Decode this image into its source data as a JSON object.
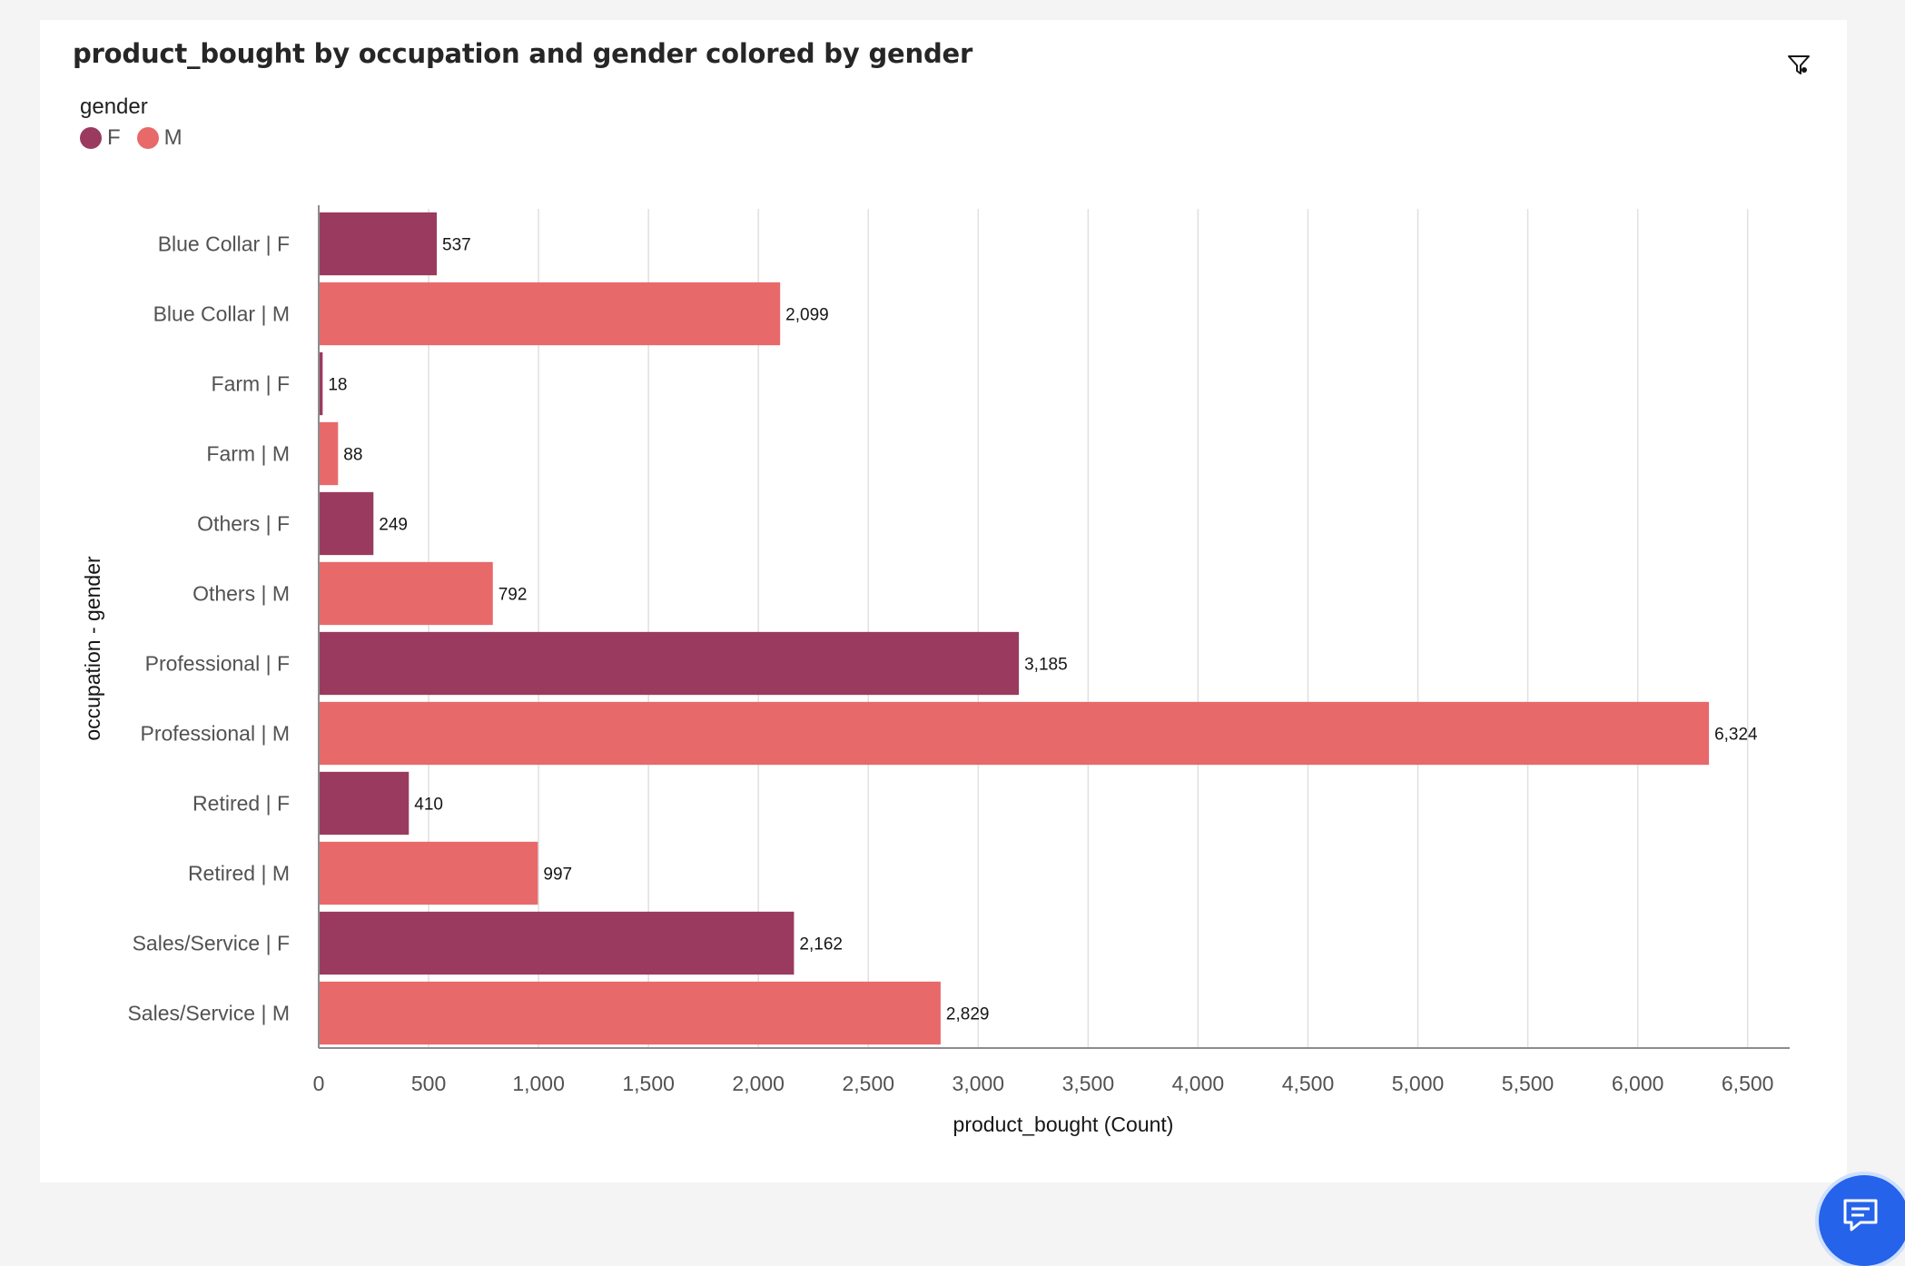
{
  "card": {
    "title": "product_bought by occupation and gender colored by gender"
  },
  "legend": {
    "title": "gender",
    "items": [
      {
        "label": "F",
        "color": "#9b3a5f"
      },
      {
        "label": "M",
        "color": "#e8696a"
      }
    ]
  },
  "icons": {
    "filter": "filter-icon",
    "chat": "chat-icon"
  },
  "chart_data": {
    "type": "bar",
    "orientation": "horizontal",
    "title": "product_bought by occupation and gender colored by gender",
    "xlabel": "product_bought (Count)",
    "ylabel": "occupation - gender",
    "xlim": [
      0,
      6650
    ],
    "xticks": [
      0,
      500,
      1000,
      1500,
      2000,
      2500,
      3000,
      3500,
      4000,
      4500,
      5000,
      5500,
      6000,
      6500
    ],
    "xtick_labels": [
      "0",
      "500",
      "1,000",
      "1,500",
      "2,000",
      "2,500",
      "3,000",
      "3,500",
      "4,000",
      "4,500",
      "5,000",
      "5,500",
      "6,000",
      "6,500"
    ],
    "grid": "vertical",
    "legend_placement": "top-left",
    "categories": [
      "Blue Collar | F",
      "Blue Collar | M",
      "Farm | F",
      "Farm | M",
      "Others | F",
      "Others | M",
      "Professional | F",
      "Professional | M",
      "Retired | F",
      "Retired | M",
      "Sales/Service | F",
      "Sales/Service | M"
    ],
    "values": [
      537,
      2099,
      18,
      88,
      249,
      792,
      3185,
      6324,
      410,
      997,
      2162,
      2829
    ],
    "value_labels": [
      "537",
      "2,099",
      "18",
      "88",
      "249",
      "792",
      "3,185",
      "6,324",
      "410",
      "997",
      "2,162",
      "2,829"
    ],
    "gender": [
      "F",
      "M",
      "F",
      "M",
      "F",
      "M",
      "F",
      "M",
      "F",
      "M",
      "F",
      "M"
    ]
  }
}
